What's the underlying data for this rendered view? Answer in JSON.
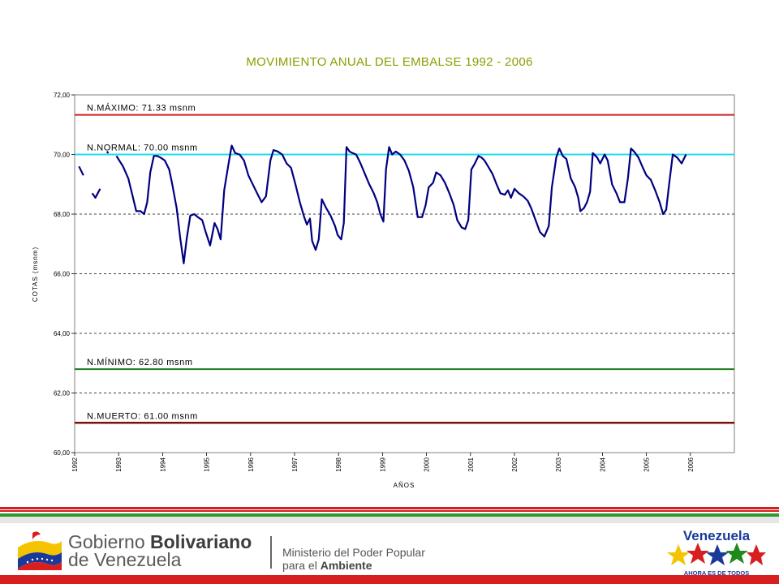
{
  "chart_data": {
    "type": "line",
    "title": "MOVIMIENTO ANUAL DEL EMBALSE 1992 - 2006",
    "xlabel": "AÑOS",
    "ylabel": "COTAS (msnm)",
    "ylim": [
      60,
      72
    ],
    "yticks": [
      "60,00",
      "62,00",
      "64,00",
      "66,00",
      "68,00",
      "70,00",
      "72,00"
    ],
    "xlim": [
      1992,
      2007
    ],
    "xticks": [
      "1992",
      "1993",
      "1994",
      "1995",
      "1996",
      "1997",
      "1998",
      "1999",
      "2000",
      "2001",
      "2002",
      "2003",
      "2004",
      "2005",
      "2006"
    ],
    "grid": "horizontal dashed",
    "series_color": "#000080",
    "reference_lines": [
      {
        "label": "N.MÁXIMO: 71.33 msnm",
        "value": 71.33,
        "color": "#cc2222"
      },
      {
        "label": "N.NORMAL: 70.00 msnm",
        "value": 70.0,
        "color": "#22ddee"
      },
      {
        "label": "N.MÍNIMO: 62.80 msnm",
        "value": 62.8,
        "color": "#1e7a1e"
      },
      {
        "label": "N.MUERTO: 61.00 msnm",
        "value": 61.0,
        "color": "#7a1010"
      }
    ],
    "segments": [
      [
        [
          1992.1,
          69.6
        ],
        [
          1992.2,
          69.3
        ]
      ],
      [
        [
          1992.4,
          68.7
        ],
        [
          1992.47,
          68.55
        ],
        [
          1992.58,
          68.85
        ]
      ],
      [
        [
          1992.73,
          70.1
        ],
        [
          1992.77,
          70.05
        ]
      ],
      [
        [
          1992.95,
          69.95
        ],
        [
          1993.1,
          69.6
        ],
        [
          1993.22,
          69.2
        ],
        [
          1993.32,
          68.6
        ],
        [
          1993.4,
          68.1
        ],
        [
          1993.5,
          68.1
        ],
        [
          1993.58,
          68.0
        ],
        [
          1993.65,
          68.4
        ],
        [
          1993.72,
          69.4
        ],
        [
          1993.8,
          69.95
        ],
        [
          1993.88,
          69.95
        ],
        [
          1993.95,
          69.9
        ],
        [
          1994.05,
          69.8
        ],
        [
          1994.15,
          69.5
        ],
        [
          1994.22,
          69.0
        ],
        [
          1994.32,
          68.2
        ],
        [
          1994.4,
          67.2
        ],
        [
          1994.48,
          66.35
        ],
        [
          1994.55,
          67.2
        ],
        [
          1994.63,
          67.95
        ],
        [
          1994.72,
          68.0
        ],
        [
          1994.8,
          67.9
        ],
        [
          1994.9,
          67.8
        ],
        [
          1994.98,
          67.4
        ],
        [
          1995.08,
          66.95
        ],
        [
          1995.18,
          67.7
        ],
        [
          1995.25,
          67.5
        ],
        [
          1995.32,
          67.15
        ],
        [
          1995.4,
          68.8
        ],
        [
          1995.5,
          69.7
        ],
        [
          1995.57,
          70.3
        ],
        [
          1995.65,
          70.05
        ],
        [
          1995.75,
          70.0
        ],
        [
          1995.85,
          69.8
        ],
        [
          1995.95,
          69.3
        ],
        [
          1996.05,
          69.0
        ],
        [
          1996.15,
          68.7
        ],
        [
          1996.25,
          68.4
        ],
        [
          1996.35,
          68.6
        ],
        [
          1996.45,
          69.8
        ],
        [
          1996.52,
          70.15
        ],
        [
          1996.62,
          70.1
        ],
        [
          1996.72,
          70.0
        ],
        [
          1996.82,
          69.7
        ],
        [
          1996.92,
          69.55
        ],
        [
          1997.02,
          69.0
        ],
        [
          1997.12,
          68.4
        ],
        [
          1997.22,
          67.9
        ],
        [
          1997.28,
          67.65
        ],
        [
          1997.35,
          67.85
        ],
        [
          1997.4,
          67.1
        ],
        [
          1997.48,
          66.8
        ],
        [
          1997.55,
          67.15
        ],
        [
          1997.62,
          68.5
        ],
        [
          1997.72,
          68.2
        ],
        [
          1997.82,
          67.95
        ],
        [
          1997.92,
          67.6
        ],
        [
          1997.98,
          67.3
        ],
        [
          1998.06,
          67.15
        ],
        [
          1998.12,
          67.7
        ],
        [
          1998.18,
          70.25
        ],
        [
          1998.25,
          70.1
        ],
        [
          1998.32,
          70.05
        ],
        [
          1998.4,
          70.0
        ],
        [
          1998.5,
          69.7
        ],
        [
          1998.6,
          69.35
        ],
        [
          1998.7,
          69.0
        ],
        [
          1998.8,
          68.7
        ],
        [
          1998.88,
          68.4
        ],
        [
          1998.95,
          68.0
        ],
        [
          1999.02,
          67.75
        ],
        [
          1999.08,
          69.5
        ],
        [
          1999.15,
          70.25
        ],
        [
          1999.22,
          70.0
        ],
        [
          1999.3,
          70.1
        ],
        [
          1999.4,
          70.0
        ],
        [
          1999.5,
          69.8
        ],
        [
          1999.6,
          69.45
        ],
        [
          1999.7,
          68.9
        ],
        [
          1999.8,
          67.9
        ],
        [
          1999.9,
          67.9
        ],
        [
          1999.98,
          68.3
        ],
        [
          2000.05,
          68.9
        ],
        [
          2000.15,
          69.05
        ],
        [
          2000.22,
          69.4
        ],
        [
          2000.32,
          69.3
        ],
        [
          2000.42,
          69.05
        ],
        [
          2000.52,
          68.7
        ],
        [
          2000.62,
          68.3
        ],
        [
          2000.7,
          67.8
        ],
        [
          2000.8,
          67.55
        ],
        [
          2000.88,
          67.5
        ],
        [
          2000.95,
          67.8
        ],
        [
          2001.02,
          69.5
        ],
        [
          2001.1,
          69.7
        ],
        [
          2001.18,
          69.95
        ],
        [
          2001.25,
          69.9
        ],
        [
          2001.32,
          69.8
        ],
        [
          2001.4,
          69.6
        ],
        [
          2001.5,
          69.35
        ],
        [
          2001.58,
          69.05
        ],
        [
          2001.68,
          68.7
        ],
        [
          2001.78,
          68.65
        ],
        [
          2001.85,
          68.8
        ],
        [
          2001.92,
          68.55
        ],
        [
          2002.0,
          68.85
        ],
        [
          2002.1,
          68.7
        ],
        [
          2002.2,
          68.6
        ],
        [
          2002.3,
          68.45
        ],
        [
          2002.38,
          68.2
        ],
        [
          2002.48,
          67.8
        ],
        [
          2002.58,
          67.4
        ],
        [
          2002.68,
          67.25
        ],
        [
          2002.78,
          67.6
        ],
        [
          2002.85,
          68.9
        ],
        [
          2002.95,
          69.9
        ],
        [
          2003.02,
          70.2
        ],
        [
          2003.1,
          69.95
        ],
        [
          2003.18,
          69.85
        ],
        [
          2003.28,
          69.2
        ],
        [
          2003.38,
          68.9
        ],
        [
          2003.45,
          68.55
        ],
        [
          2003.5,
          68.1
        ],
        [
          2003.58,
          68.2
        ],
        [
          2003.65,
          68.4
        ],
        [
          2003.72,
          68.75
        ],
        [
          2003.78,
          70.05
        ],
        [
          2003.88,
          69.9
        ],
        [
          2003.95,
          69.7
        ],
        [
          2004.05,
          70.0
        ],
        [
          2004.12,
          69.8
        ],
        [
          2004.22,
          69.0
        ],
        [
          2004.32,
          68.7
        ],
        [
          2004.4,
          68.4
        ],
        [
          2004.5,
          68.4
        ],
        [
          2004.58,
          69.2
        ],
        [
          2004.65,
          70.2
        ],
        [
          2004.72,
          70.1
        ],
        [
          2004.82,
          69.9
        ],
        [
          2004.92,
          69.55
        ],
        [
          2005.0,
          69.3
        ],
        [
          2005.1,
          69.15
        ],
        [
          2005.2,
          68.8
        ],
        [
          2005.3,
          68.4
        ],
        [
          2005.38,
          68.0
        ],
        [
          2005.45,
          68.15
        ],
        [
          2005.52,
          69.05
        ],
        [
          2005.6,
          70.0
        ],
        [
          2005.7,
          69.9
        ],
        [
          2005.8,
          69.7
        ],
        [
          2005.9,
          70.0
        ]
      ]
    ]
  },
  "footer": {
    "gov_line1": "Gobierno",
    "gov_line1_bold": "Bolivariano",
    "gov_line2": "de Venezuela",
    "ministry_line1": "Ministerio del Poder Popular",
    "ministry_line2": "para el",
    "ministry_line2_bold": "Ambiente",
    "brand_title": "Venezuela",
    "brand_slogan": "AHORA ES DE TODOS",
    "colors": {
      "red": "#d81e1e",
      "green": "#1e8a1e",
      "yellow": "#f5c400",
      "blue": "#1a3a9a"
    }
  }
}
